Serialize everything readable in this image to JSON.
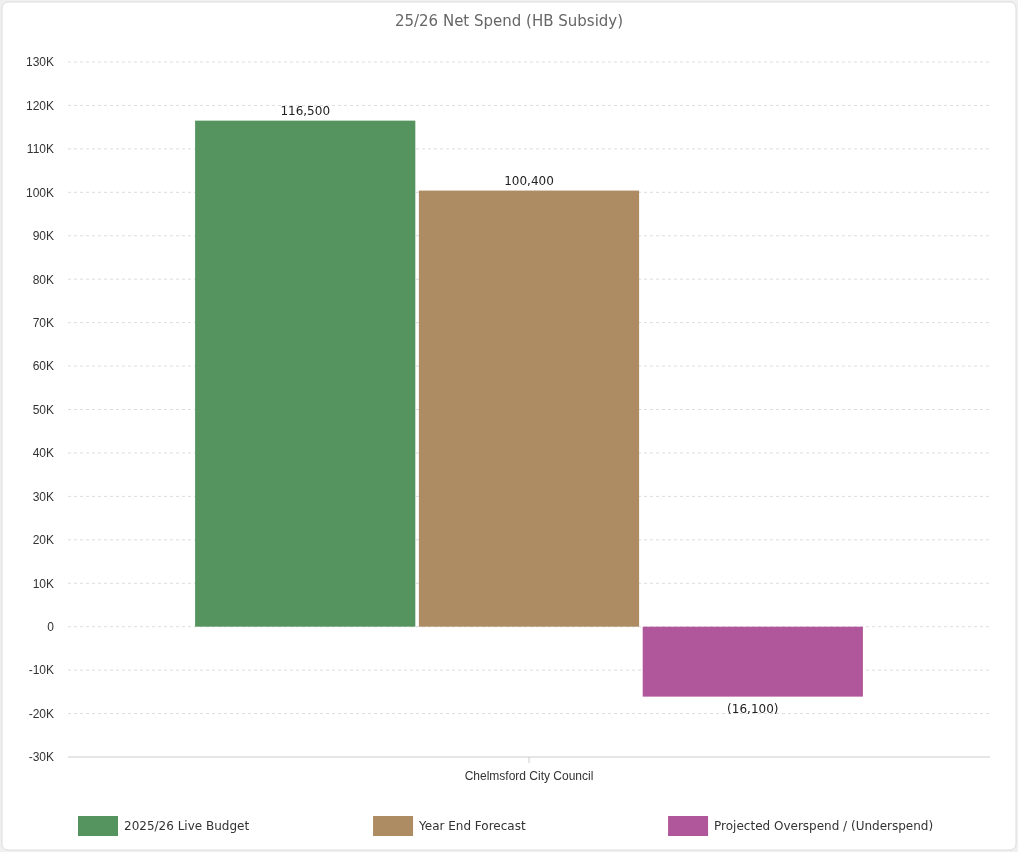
{
  "chart_data": {
    "type": "bar",
    "title": "25/26 Net Spend (HB Subsidy)",
    "categories": [
      "Chelmsford City Council"
    ],
    "series": [
      {
        "name": "2025/26 Live Budget",
        "color": "#55945e",
        "values": [
          116500
        ],
        "value_labels": [
          "116,500"
        ]
      },
      {
        "name": "Year End Forecast",
        "color": "#ad8c63",
        "values": [
          100400
        ],
        "value_labels": [
          "100,400"
        ]
      },
      {
        "name": "Projected Overspend / (Underspend)",
        "color": "#b0569a",
        "values": [
          -16100
        ],
        "value_labels": [
          "(16,100)"
        ]
      }
    ],
    "ylim": [
      -30000,
      130000
    ],
    "yticks": [
      {
        "value": -30000,
        "label": "-30K"
      },
      {
        "value": -20000,
        "label": "-20K"
      },
      {
        "value": -10000,
        "label": "-10K"
      },
      0,
      {
        "value": 10000,
        "label": "10K"
      },
      {
        "value": 20000,
        "label": "20K"
      },
      {
        "value": 30000,
        "label": "30K"
      },
      {
        "value": 40000,
        "label": "40K"
      },
      {
        "value": 50000,
        "label": "50K"
      },
      {
        "value": 60000,
        "label": "60K"
      },
      {
        "value": 70000,
        "label": "70K"
      },
      {
        "value": 80000,
        "label": "80K"
      },
      {
        "value": 90000,
        "label": "90K"
      },
      {
        "value": 100000,
        "label": "100K"
      },
      {
        "value": 110000,
        "label": "110K"
      },
      {
        "value": 120000,
        "label": "120K"
      },
      {
        "value": 130000,
        "label": "130K"
      }
    ],
    "grid": "y",
    "legend": "bottom"
  }
}
